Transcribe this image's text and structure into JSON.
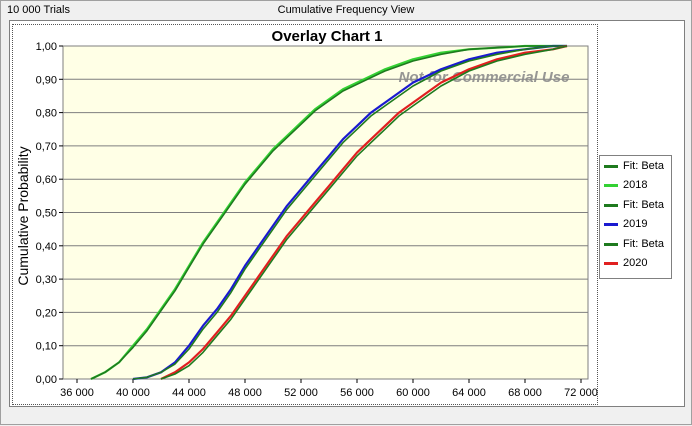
{
  "window": {
    "trials_label": "10 000 Trials",
    "view_title": "Cumulative Frequency View"
  },
  "watermark": "Not for Commercial Use",
  "colors": {
    "fit_line": "#1e7a1e",
    "series_2018": "#33d133",
    "series_2019": "#1a1ad0",
    "series_2020": "#e02020",
    "plot_background": "#ffffe6",
    "grid": "#7f7f7f"
  },
  "chart_data": {
    "type": "line",
    "title": "Overlay Chart 1",
    "xlabel": "",
    "ylabel": "Cumulative Probability",
    "xlim": [
      35000,
      72500
    ],
    "ylim": [
      0,
      1
    ],
    "x_ticks": [
      "36 000",
      "40 000",
      "44 000",
      "48 000",
      "52 000",
      "56 000",
      "60 000",
      "64 000",
      "68 000",
      "72 000"
    ],
    "y_ticks": [
      "0,00",
      "0,10",
      "0,20",
      "0,30",
      "0,40",
      "0,50",
      "0,60",
      "0,70",
      "0,80",
      "0,90",
      "1,00"
    ],
    "grid": "horizontal",
    "legend_position": "right",
    "legend": [
      "Fit: Beta",
      "2018",
      "Fit: Beta",
      "2019",
      "Fit: Beta",
      "2020"
    ],
    "series": [
      {
        "name": "2018",
        "color": "#33d133",
        "x": [
          37000,
          38000,
          39000,
          40000,
          41000,
          42000,
          43000,
          44000,
          45000,
          46000,
          47000,
          48000,
          49000,
          50000,
          51000,
          52000,
          53000,
          54000,
          55000,
          56000,
          58000,
          60000,
          62000,
          64000,
          66000,
          68000,
          71000
        ],
        "y": [
          0.0,
          0.02,
          0.05,
          0.1,
          0.15,
          0.21,
          0.27,
          0.34,
          0.41,
          0.47,
          0.53,
          0.59,
          0.64,
          0.69,
          0.73,
          0.77,
          0.81,
          0.84,
          0.87,
          0.89,
          0.93,
          0.96,
          0.98,
          0.99,
          0.995,
          1.0,
          1.0
        ]
      },
      {
        "name": "Fit: Beta",
        "color": "#1e7a1e",
        "x": [
          37000,
          38000,
          39000,
          40000,
          41000,
          42000,
          43000,
          44000,
          45000,
          46000,
          47000,
          48000,
          49000,
          50000,
          51000,
          52000,
          53000,
          54000,
          55000,
          56000,
          58000,
          60000,
          62000,
          64000,
          66000,
          68000,
          71000
        ],
        "y": [
          0.0,
          0.02,
          0.05,
          0.095,
          0.145,
          0.205,
          0.265,
          0.335,
          0.405,
          0.465,
          0.525,
          0.585,
          0.635,
          0.685,
          0.725,
          0.765,
          0.805,
          0.835,
          0.865,
          0.885,
          0.925,
          0.955,
          0.975,
          0.99,
          0.995,
          1.0,
          1.0
        ]
      },
      {
        "name": "2019",
        "color": "#1a1ad0",
        "x": [
          40000,
          41000,
          42000,
          43000,
          44000,
          45000,
          46000,
          47000,
          48000,
          49000,
          50000,
          51000,
          52000,
          53000,
          54000,
          55000,
          56000,
          57000,
          58000,
          60000,
          62000,
          64000,
          66000,
          68000,
          70000,
          71000
        ],
        "y": [
          0.0,
          0.005,
          0.02,
          0.05,
          0.1,
          0.16,
          0.21,
          0.27,
          0.34,
          0.4,
          0.46,
          0.52,
          0.57,
          0.62,
          0.67,
          0.72,
          0.76,
          0.8,
          0.83,
          0.89,
          0.93,
          0.96,
          0.98,
          0.99,
          1.0,
          1.0
        ]
      },
      {
        "name": "Fit: Beta",
        "color": "#1e7a1e",
        "x": [
          40000,
          41000,
          42000,
          43000,
          44000,
          45000,
          46000,
          47000,
          48000,
          49000,
          50000,
          51000,
          52000,
          53000,
          54000,
          55000,
          56000,
          57000,
          58000,
          60000,
          62000,
          64000,
          66000,
          68000,
          70000,
          71000
        ],
        "y": [
          0.0,
          0.005,
          0.02,
          0.045,
          0.09,
          0.15,
          0.2,
          0.26,
          0.33,
          0.39,
          0.45,
          0.51,
          0.56,
          0.61,
          0.66,
          0.71,
          0.75,
          0.79,
          0.82,
          0.88,
          0.925,
          0.955,
          0.975,
          0.99,
          1.0,
          1.0
        ]
      },
      {
        "name": "2020",
        "color": "#e02020",
        "x": [
          42000,
          43000,
          44000,
          45000,
          46000,
          47000,
          48000,
          49000,
          50000,
          51000,
          52000,
          53000,
          54000,
          55000,
          56000,
          57000,
          58000,
          59000,
          60000,
          62000,
          64000,
          66000,
          68000,
          70000,
          71000
        ],
        "y": [
          0.0,
          0.02,
          0.05,
          0.09,
          0.14,
          0.19,
          0.25,
          0.31,
          0.37,
          0.43,
          0.48,
          0.53,
          0.58,
          0.63,
          0.68,
          0.72,
          0.76,
          0.8,
          0.83,
          0.89,
          0.93,
          0.96,
          0.98,
          0.99,
          1.0
        ]
      },
      {
        "name": "Fit: Beta",
        "color": "#1e7a1e",
        "x": [
          42000,
          43000,
          44000,
          45000,
          46000,
          47000,
          48000,
          49000,
          50000,
          51000,
          52000,
          53000,
          54000,
          55000,
          56000,
          57000,
          58000,
          59000,
          60000,
          62000,
          64000,
          66000,
          68000,
          70000,
          71000
        ],
        "y": [
          0.0,
          0.015,
          0.04,
          0.08,
          0.13,
          0.18,
          0.24,
          0.3,
          0.36,
          0.42,
          0.47,
          0.52,
          0.57,
          0.62,
          0.67,
          0.71,
          0.75,
          0.79,
          0.82,
          0.88,
          0.925,
          0.955,
          0.975,
          0.99,
          1.0
        ]
      }
    ]
  }
}
